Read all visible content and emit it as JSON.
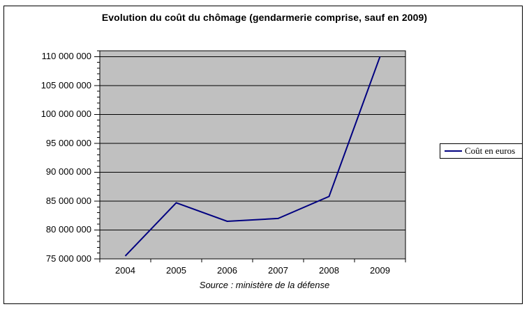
{
  "chart_data": {
    "type": "line",
    "title": "Evolution du coût du chômage (gendarmerie comprise, sauf en 2009)",
    "source": "Source : ministère de la défense",
    "categories": [
      "2004",
      "2005",
      "2006",
      "2007",
      "2008",
      "2009"
    ],
    "series": [
      {
        "name": "Coût en euros",
        "color": "#000080",
        "values": [
          75500000,
          84700000,
          81500000,
          82000000,
          85800000,
          110000000
        ]
      }
    ],
    "xlabel": "",
    "ylabel": "",
    "ylim": [
      75000000,
      111000000
    ],
    "y_major_unit": 5000000,
    "y_minor_unit": 1000000,
    "ytick_labels": [
      "75 000 000",
      "80 000 000",
      "85 000 000",
      "90 000 000",
      "95 000 000",
      "100 000 000",
      "105 000 000",
      "110 000 000"
    ],
    "grid": "horizontal-major",
    "legend_position": "right",
    "plot_background": "#c0c0c0",
    "gridline_color": "#000000",
    "axis_color": "#000000"
  }
}
